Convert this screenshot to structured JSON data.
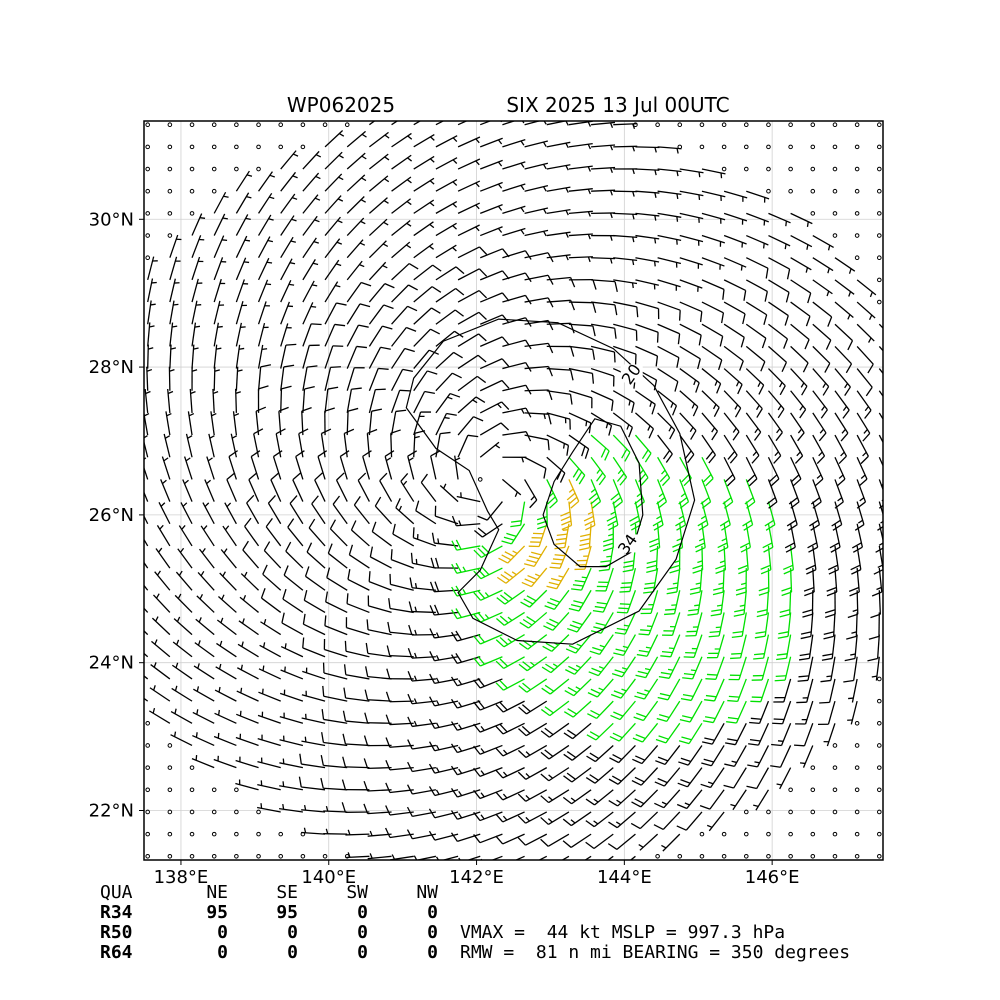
{
  "chart_data": {
    "type": "wind-barb map",
    "title_left": "WP062025",
    "title_right": "SIX 2025 13 Jul 00UTC",
    "xlim": [
      137.5,
      147.5
    ],
    "ylim": [
      21.33,
      31.33
    ],
    "x_ticks": [
      {
        "value": 138,
        "label": "138°E"
      },
      {
        "value": 140,
        "label": "140°E"
      },
      {
        "value": 142,
        "label": "142°E"
      },
      {
        "value": 144,
        "label": "144°E"
      },
      {
        "value": 146,
        "label": "146°E"
      }
    ],
    "y_ticks": [
      {
        "value": 22,
        "label": "22°N"
      },
      {
        "value": 24,
        "label": "24°N"
      },
      {
        "value": 26,
        "label": "26°N"
      },
      {
        "value": 28,
        "label": "28°N"
      },
      {
        "value": 30,
        "label": "30°N"
      }
    ],
    "grid": true,
    "storm": {
      "center_lon": 142.2,
      "center_lat": 26.4,
      "vmax_kt": 44,
      "rmw_nmi": 81,
      "bearing_deg": 350,
      "r34_ne_nmi": 95,
      "r34_se_nmi": 95
    },
    "barb_spacing_deg": 0.3,
    "barb_colors": {
      "below_20": "#000000",
      "20_to_34": "#00e000",
      "above_34": "#e0b000"
    },
    "contours": [
      {
        "level": 20,
        "label": "20",
        "label_lon": 144.1,
        "label_lat": 27.9
      },
      {
        "level": 34,
        "label": "34",
        "label_lon": 144.05,
        "label_lat": 25.6
      }
    ]
  },
  "radii": {
    "header": [
      "QUA",
      "NE",
      "SE",
      "SW",
      "NW"
    ],
    "rows": [
      {
        "name": "R34",
        "values": [
          "95",
          "95",
          "0",
          "0"
        ]
      },
      {
        "name": "R50",
        "values": [
          "0",
          "0",
          "0",
          "0"
        ]
      },
      {
        "name": "R64",
        "values": [
          "0",
          "0",
          "0",
          "0"
        ]
      }
    ]
  },
  "stats": {
    "line1": "VMAX =  44 kt MSLP = 997.3 hPa",
    "line2": "RMW =  81 n mi BEARING = 350 degrees"
  }
}
